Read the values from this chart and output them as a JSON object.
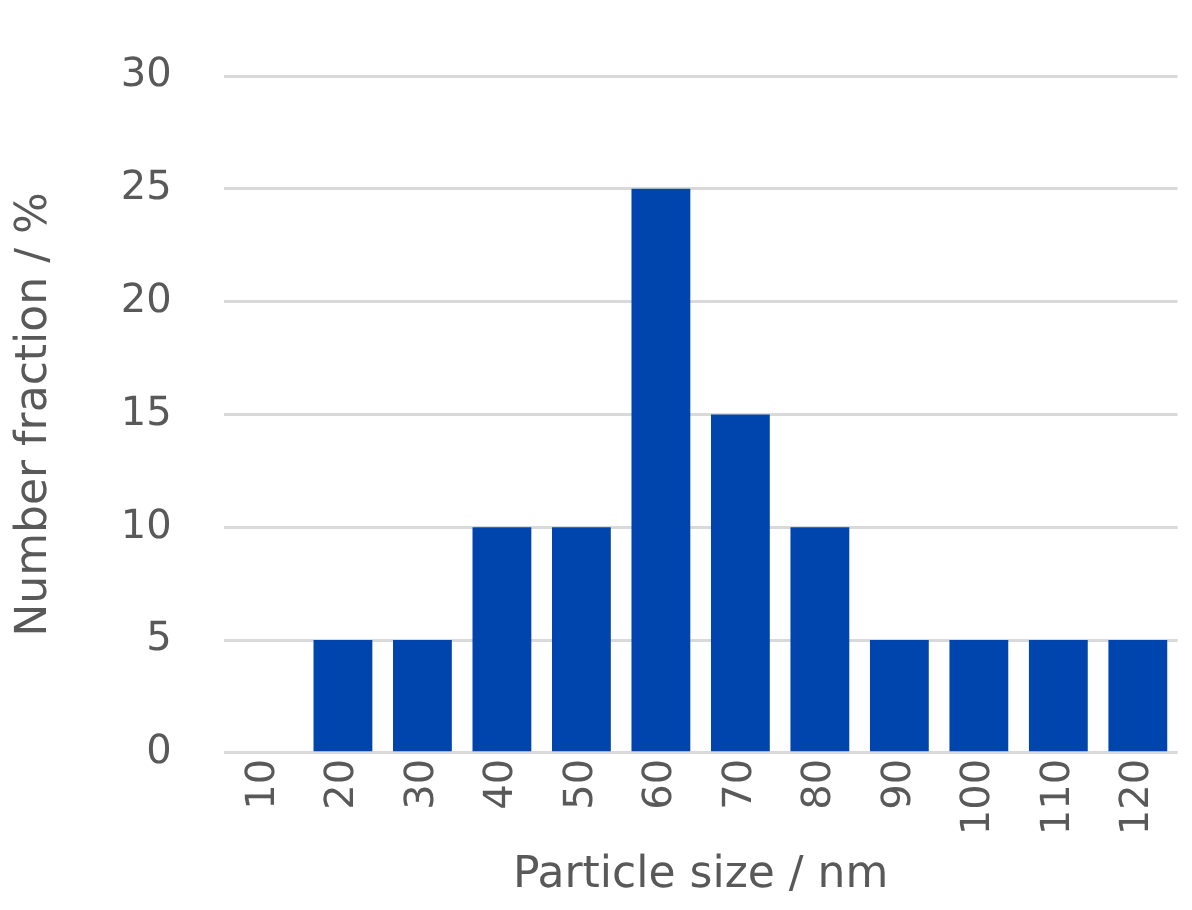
{
  "chart_data": {
    "type": "bar",
    "xlabel": "Particle size / nm",
    "ylabel": "Number fraction / %",
    "categories": [
      "10",
      "20",
      "30",
      "40",
      "50",
      "60",
      "70",
      "80",
      "90",
      "100",
      "110",
      "120"
    ],
    "values": [
      0,
      5,
      5,
      10,
      10,
      25,
      15,
      10,
      5,
      5,
      5,
      5
    ],
    "color": "#0045ad",
    "ylim": [
      0,
      30
    ],
    "yticks": [
      0,
      5,
      10,
      15,
      20,
      25,
      30
    ],
    "grid": "y",
    "legend": false
  }
}
